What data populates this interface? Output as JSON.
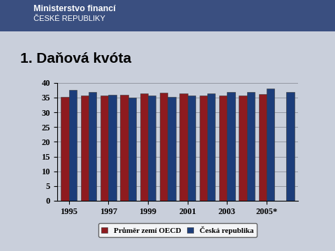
{
  "header": {
    "lines": [
      "Ministerstvo financí",
      "ČESKÉ REPUBLIKY"
    ]
  },
  "chart_data": {
    "type": "bar",
    "title": "1. Daňová kvóta",
    "categories": [
      "1995",
      null,
      "1997",
      null,
      "1999",
      null,
      "2001",
      null,
      "2003",
      null,
      "2005*",
      null
    ],
    "series": [
      {
        "name": "Průměr zemí OECD",
        "color": "#8e1b1f",
        "values": [
          35.2,
          35.7,
          35.8,
          36.0,
          36.4,
          36.6,
          36.3,
          35.8,
          35.7,
          35.8,
          36.2,
          null
        ]
      },
      {
        "name": "Česká republika",
        "color": "#1c3d7a",
        "values": [
          37.5,
          36.9,
          35.9,
          35.0,
          35.6,
          35.3,
          35.6,
          36.3,
          36.9,
          36.9,
          38.1,
          36.9
        ]
      }
    ],
    "ylim": [
      0,
      40
    ],
    "yticks": [
      0,
      5,
      10,
      15,
      20,
      25,
      30,
      35,
      40
    ],
    "grid": true,
    "legend": "bottom"
  }
}
